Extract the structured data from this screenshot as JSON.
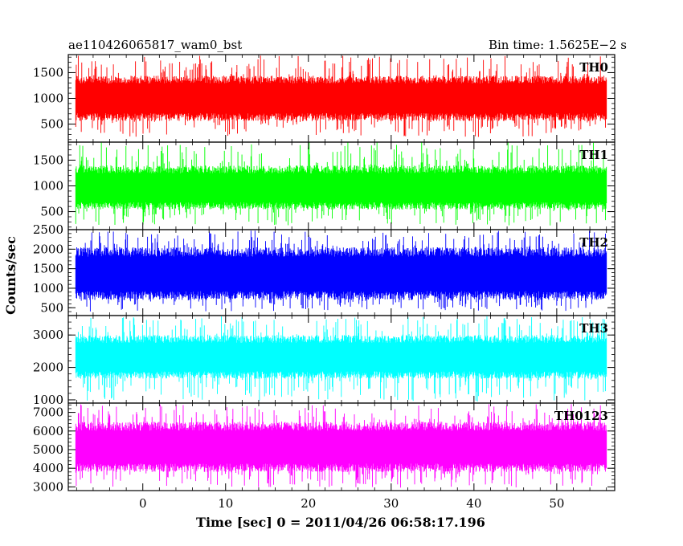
{
  "chart_data": {
    "type": "line",
    "header_left": "ae110426065817_wam0_bst",
    "header_right": "Bin time: 1.5625E−2 s",
    "xlabel": "Time [sec] 0 = 2011/04/26 06:58:17.196",
    "ylabel": "Counts/sec",
    "xlim": [
      -9,
      57
    ],
    "data_range": [
      -8.1,
      56
    ],
    "x_ticks": [
      0,
      10,
      20,
      30,
      40,
      50
    ],
    "x_tick_labels": [
      "0",
      "10",
      "20",
      "30",
      "40",
      "50"
    ],
    "bin_time": 0.015625,
    "grid": false,
    "panels": [
      {
        "name": "TH0",
        "color": "#ff0000",
        "ylim": [
          150,
          1850
        ],
        "y_ticks": [
          500,
          1000,
          1500
        ],
        "y_tick_labels": [
          "500",
          "1000",
          "1500"
        ],
        "mean": 1000,
        "typ_low": 560,
        "typ_high": 1440,
        "min": 250,
        "max": 1830
      },
      {
        "name": "TH1",
        "color": "#00ff00",
        "ylim": [
          150,
          1850
        ],
        "y_ticks": [
          500,
          1000,
          1500
        ],
        "y_tick_labels": [
          "500",
          "1000",
          "1500"
        ],
        "mean": 950,
        "typ_low": 540,
        "typ_high": 1400,
        "min": 230,
        "max": 1860
      },
      {
        "name": "TH2",
        "color": "#0000ff",
        "ylim": [
          300,
          2500
        ],
        "y_ticks": [
          500,
          1000,
          1500,
          2000,
          2500
        ],
        "y_tick_labels": [
          "500",
          "1000",
          "1500",
          "2000",
          "2500"
        ],
        "mean": 1350,
        "typ_low": 700,
        "typ_high": 2050,
        "min": 400,
        "max": 2480
      },
      {
        "name": "TH3",
        "color": "#00ffff",
        "ylim": [
          900,
          3600
        ],
        "y_ticks": [
          1000,
          2000,
          3000
        ],
        "y_tick_labels": [
          "1000",
          "2000",
          "3000"
        ],
        "mean": 2300,
        "typ_low": 1650,
        "typ_high": 3000,
        "min": 950,
        "max": 3580
      },
      {
        "name": "TH0123",
        "color": "#ff00ff",
        "ylim": [
          2800,
          7500
        ],
        "y_ticks": [
          3000,
          4000,
          5000,
          6000,
          7000
        ],
        "y_tick_labels": [
          "3000",
          "4000",
          "5000",
          "6000",
          "7000"
        ],
        "mean": 5100,
        "typ_low": 3800,
        "typ_high": 6500,
        "min": 2950,
        "max": 7450
      }
    ]
  }
}
